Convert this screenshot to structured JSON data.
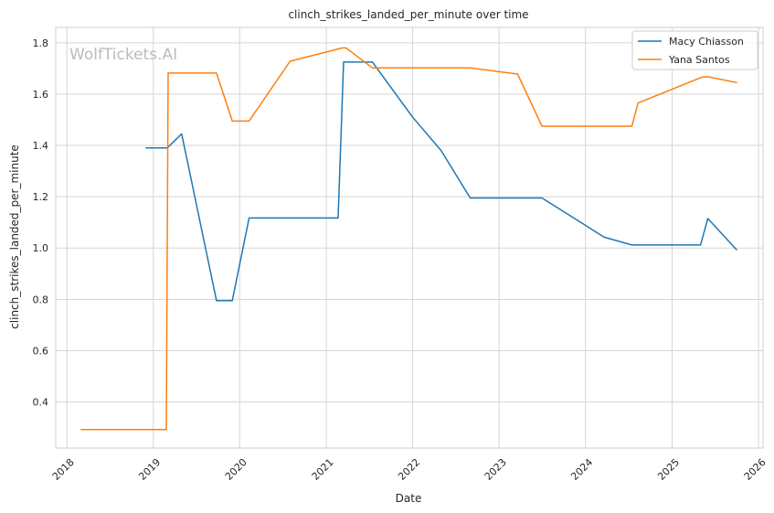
{
  "chart_data": {
    "type": "line",
    "title": "clinch_strikes_landed_per_minute over time",
    "xlabel": "Date",
    "ylabel": "clinch_strikes_landed_per_minute",
    "watermark": "WolfTickets.AI",
    "xlim": [
      "2017-11-15",
      "2026-01-20"
    ],
    "ylim": [
      0.22,
      1.86
    ],
    "x_ticks": [
      "2018",
      "2019",
      "2020",
      "2021",
      "2022",
      "2023",
      "2024",
      "2025",
      "2026"
    ],
    "y_ticks": [
      0.4,
      0.6,
      0.8,
      1.0,
      1.2,
      1.4,
      1.6,
      1.8
    ],
    "grid": true,
    "legend_position": "top-right",
    "series": [
      {
        "name": "Macy Chiasson",
        "color": "#1f77b4",
        "points": [
          [
            "2018-12-01",
            1.39
          ],
          [
            "2019-03-01",
            1.39
          ],
          [
            "2019-05-01",
            1.445
          ],
          [
            "2019-09-25",
            0.795
          ],
          [
            "2019-12-01",
            0.795
          ],
          [
            "2020-02-10",
            1.117
          ],
          [
            "2021-02-20",
            1.117
          ],
          [
            "2021-03-15",
            1.725
          ],
          [
            "2021-07-15",
            1.725
          ],
          [
            "2022-01-01",
            1.51
          ],
          [
            "2022-05-01",
            1.38
          ],
          [
            "2022-09-01",
            1.195
          ],
          [
            "2023-07-01",
            1.195
          ],
          [
            "2024-03-20",
            1.042
          ],
          [
            "2024-07-15",
            1.012
          ],
          [
            "2025-05-01",
            1.012
          ],
          [
            "2025-06-01",
            1.115
          ],
          [
            "2025-10-01",
            0.993
          ]
        ]
      },
      {
        "name": "Yana Santos",
        "color": "#ff7f0e",
        "points": [
          [
            "2018-03-01",
            0.292
          ],
          [
            "2019-02-25",
            0.292
          ],
          [
            "2019-03-05",
            1.682
          ],
          [
            "2019-09-25",
            1.682
          ],
          [
            "2019-12-01",
            1.495
          ],
          [
            "2020-02-10",
            1.495
          ],
          [
            "2020-08-01",
            1.728
          ],
          [
            "2021-03-10",
            1.78
          ],
          [
            "2021-03-25",
            1.78
          ],
          [
            "2021-07-15",
            1.702
          ],
          [
            "2022-09-01",
            1.702
          ],
          [
            "2023-03-20",
            1.678
          ],
          [
            "2023-07-01",
            1.475
          ],
          [
            "2024-07-15",
            1.475
          ],
          [
            "2024-08-10",
            1.565
          ],
          [
            "2025-05-10",
            1.667
          ],
          [
            "2025-06-05",
            1.667
          ],
          [
            "2025-10-01",
            1.645
          ]
        ]
      }
    ]
  }
}
